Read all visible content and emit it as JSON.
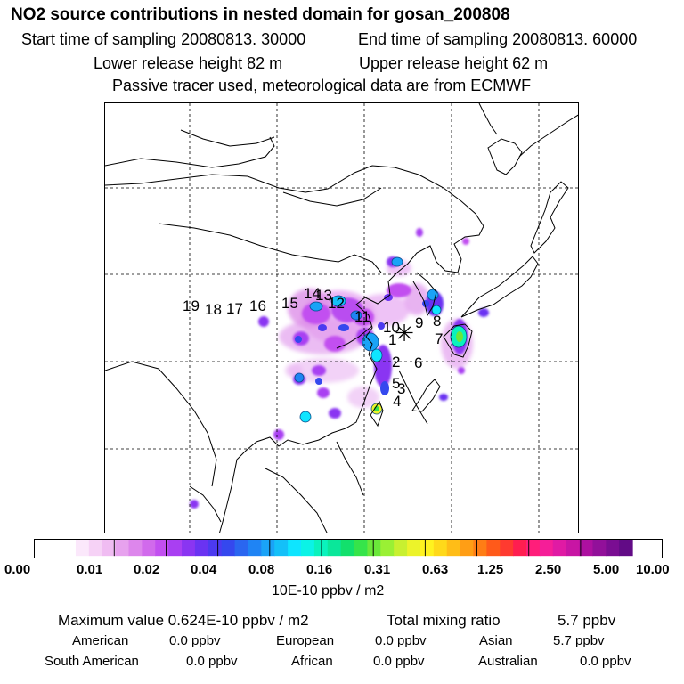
{
  "header": {
    "title": "NO2 source contributions in nested domain for gosan_200808",
    "start_time": "Start time of sampling 20080813. 30000",
    "end_time": "End time of sampling 20080813. 60000",
    "lower_height": "Lower release height   82 m",
    "upper_height": "Upper release height   62 m",
    "note": "Passive tracer used, meteorological data are from ECMWF"
  },
  "map": {
    "receptor_symbol": "✳",
    "source_labels": [
      "1",
      "2",
      "3",
      "4",
      "5",
      "6",
      "7",
      "8",
      "9",
      "10",
      "11",
      "12",
      "13",
      "14",
      "15",
      "16",
      "17",
      "18",
      "19"
    ]
  },
  "colorbar": {
    "colors": [
      "#ffffff",
      "#fbe8fb",
      "#f6d2f6",
      "#f0bcf2",
      "#e7a2ee",
      "#dd86ec",
      "#d16aec",
      "#c24ff0",
      "#a93ff2",
      "#8a35f2",
      "#6a33f2",
      "#4c3af0",
      "#3548ee",
      "#2a66f0",
      "#1f84f4",
      "#1aa3f7",
      "#14c0f8",
      "#0ee5ff",
      "#0bf3e6",
      "#0af2bd",
      "#0ae79a",
      "#12e06c",
      "#36e44a",
      "#6ae83a",
      "#9af034",
      "#c8f030",
      "#ecf32a",
      "#fff21f",
      "#ffd91a",
      "#ffbd17",
      "#ff9e15",
      "#ff7d15",
      "#ff5a1a",
      "#ff3a30",
      "#ff1e50",
      "#ff1e7a",
      "#f51e98",
      "#e01aa4",
      "#c815a4",
      "#ad10a0",
      "#92109a",
      "#7a0d92",
      "#620b86"
    ],
    "ticks": [
      "0.00",
      "0.01",
      "0.02",
      "0.04",
      "0.08",
      "0.16",
      "0.31",
      "0.63",
      "1.25",
      "2.50",
      "5.00",
      "10.00"
    ],
    "units": "10E-10 ppbv / m2"
  },
  "stats": {
    "max_value": "Maximum value  0.624E-10 ppbv / m2",
    "total_label": "Total mixing ratio",
    "total_value": "5.7 ppbv",
    "american_label": "American",
    "american_value": "0.0 ppbv",
    "european_label": "European",
    "european_value": "0.0 ppbv",
    "asian_label": "Asian",
    "asian_value": "5.7 ppbv",
    "south_american_label": "South American",
    "south_american_value": "0.0 ppbv",
    "african_label": "African",
    "african_value": "0.0 ppbv",
    "australian_label": "Australian",
    "australian_value": "0.0 ppbv"
  }
}
